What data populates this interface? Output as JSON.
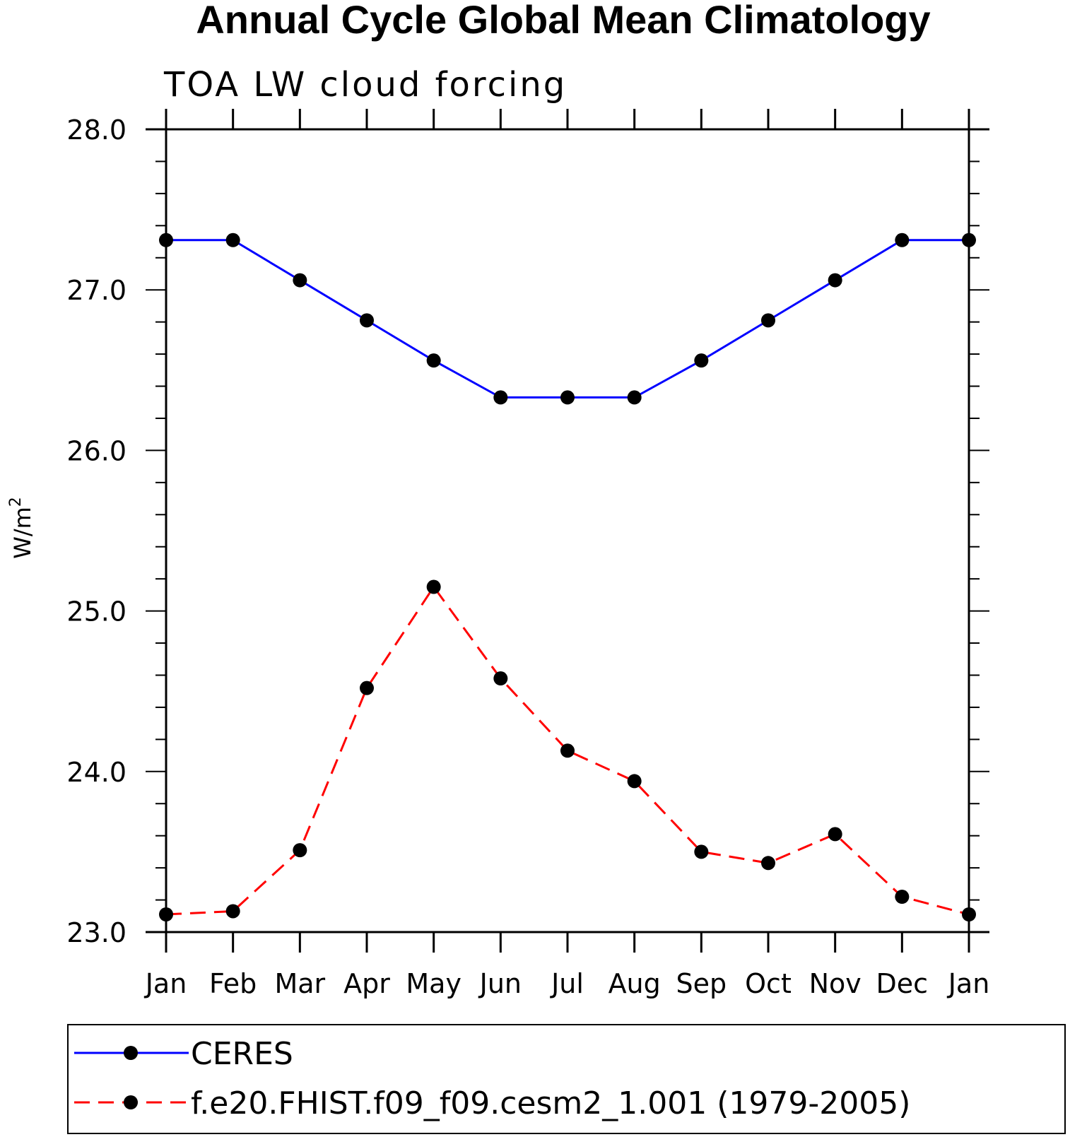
{
  "chart_data": {
    "type": "line",
    "title": "Annual Cycle Global Mean Climatology",
    "subtitle": "TOA LW cloud forcing",
    "ylabel": "W/m",
    "ylabel_superscript": "2",
    "xlabel": "",
    "categories": [
      "Jan",
      "Feb",
      "Mar",
      "Apr",
      "May",
      "Jun",
      "Jul",
      "Aug",
      "Sep",
      "Oct",
      "Nov",
      "Dec",
      "Jan"
    ],
    "yticks": [
      "23.0",
      "24.0",
      "25.0",
      "26.0",
      "27.0",
      "28.0"
    ],
    "ylim": [
      23.0,
      28.0
    ],
    "grid": false,
    "legend_placement": "bottom",
    "series": [
      {
        "name": "CERES",
        "color": "#0000ff",
        "dash": "solid",
        "values": [
          27.31,
          27.31,
          27.06,
          26.81,
          26.56,
          26.33,
          26.33,
          26.33,
          26.56,
          26.81,
          27.06,
          27.31,
          27.31
        ]
      },
      {
        "name": "f.e20.FHIST.f09_f09.cesm2_1.001 (1979-2005)",
        "color": "#ff0000",
        "dash": "dashed",
        "values": [
          23.11,
          23.13,
          23.51,
          24.52,
          25.15,
          24.58,
          24.13,
          23.94,
          23.5,
          23.43,
          23.61,
          23.22,
          23.11
        ]
      }
    ]
  }
}
